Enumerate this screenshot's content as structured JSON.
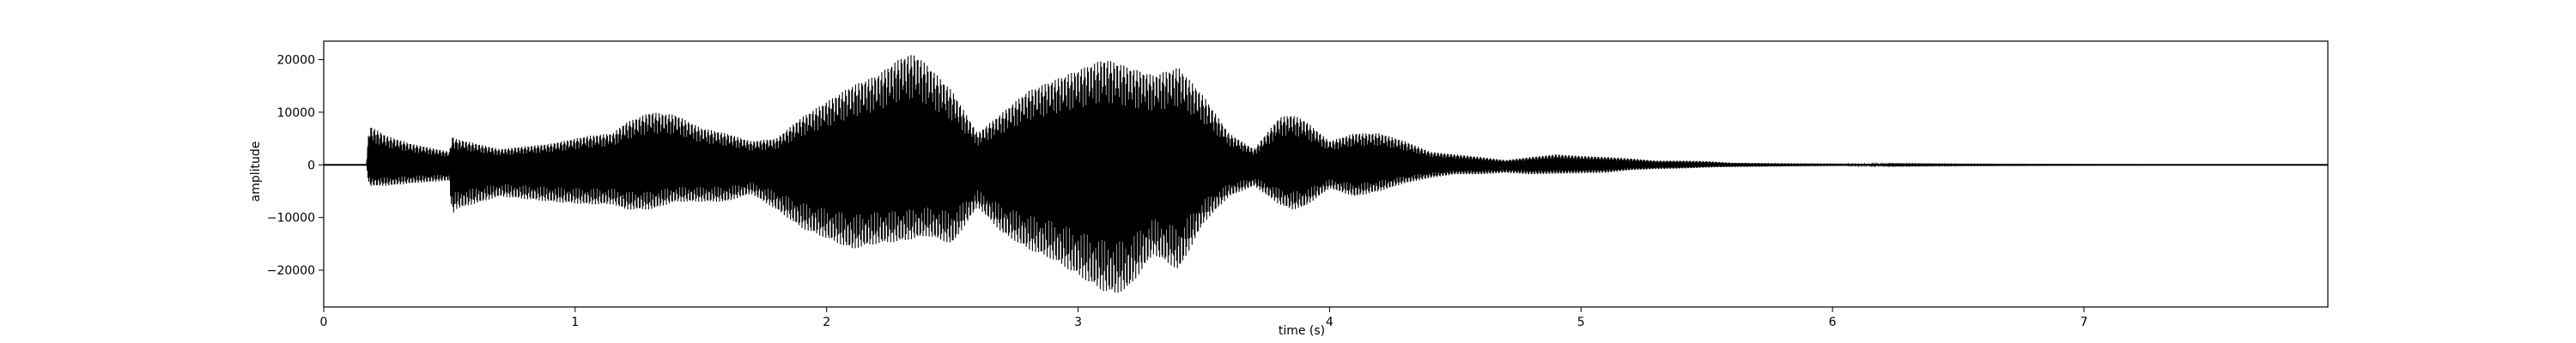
{
  "chart_data": {
    "type": "line",
    "title": "",
    "xlabel": "time (s)",
    "ylabel": "amplitude",
    "xlim": [
      0,
      7.97
    ],
    "ylim": [
      -27000,
      23500
    ],
    "xticks": [
      0,
      1,
      2,
      3,
      4,
      5,
      6,
      7
    ],
    "yticks": [
      -20000,
      -10000,
      0,
      10000,
      20000
    ],
    "grid": false,
    "series": [
      {
        "color": "#000000",
        "envelope": {
          "time": [
            0,
            0.17,
            0.18,
            0.25,
            0.35,
            0.5,
            0.51,
            0.52,
            0.7,
            0.9,
            1.05,
            1.15,
            1.2,
            1.3,
            1.4,
            1.5,
            1.6,
            1.7,
            1.8,
            1.9,
            2.0,
            2.1,
            2.2,
            2.3,
            2.35,
            2.4,
            2.5,
            2.6,
            2.7,
            2.8,
            2.9,
            3.0,
            3.1,
            3.15,
            3.2,
            3.3,
            3.4,
            3.5,
            3.6,
            3.7,
            3.8,
            3.85,
            3.9,
            4.0,
            4.1,
            4.2,
            4.3,
            4.4,
            4.5,
            4.6,
            4.7,
            4.8,
            4.9,
            5.0,
            5.1,
            5.2,
            5.3,
            5.4,
            5.5,
            5.6,
            5.8,
            6.0,
            6.2,
            6.5,
            7.0,
            7.5,
            7.97
          ],
          "upper": [
            0,
            0,
            7500,
            5500,
            4000,
            2500,
            5500,
            5000,
            3000,
            4000,
            5500,
            6000,
            8000,
            10000,
            9500,
            7000,
            6000,
            4500,
            5000,
            9000,
            12000,
            15000,
            17000,
            20500,
            21000,
            19000,
            14000,
            6000,
            10000,
            14000,
            16000,
            18000,
            20000,
            19500,
            18500,
            17000,
            18500,
            13000,
            6000,
            3000,
            9000,
            9500,
            8500,
            4500,
            6000,
            6000,
            4500,
            2500,
            2000,
            1500,
            900,
            1500,
            2000,
            1700,
            1500,
            1200,
            800,
            800,
            700,
            400,
            300,
            250,
            150,
            100,
            50,
            20,
            0
          ],
          "lower": [
            0,
            0,
            -4000,
            -4000,
            -3500,
            -3000,
            -10000,
            -8500,
            -6000,
            -7000,
            -7500,
            -7500,
            -8500,
            -8500,
            -7000,
            -7000,
            -7000,
            -5500,
            -8500,
            -12000,
            -14000,
            -16000,
            -15000,
            -14500,
            -14000,
            -13500,
            -15000,
            -8000,
            -13000,
            -16000,
            -18000,
            -21000,
            -24000,
            -24500,
            -23500,
            -17000,
            -20000,
            -11000,
            -6000,
            -4000,
            -7500,
            -8500,
            -8000,
            -4500,
            -6000,
            -5000,
            -3500,
            -2500,
            -1800,
            -1800,
            -1500,
            -1800,
            -1700,
            -1600,
            -1500,
            -1000,
            -800,
            -700,
            -500,
            -400,
            -300,
            -200,
            -150,
            -100,
            -50,
            -20,
            0
          ]
        }
      }
    ]
  }
}
